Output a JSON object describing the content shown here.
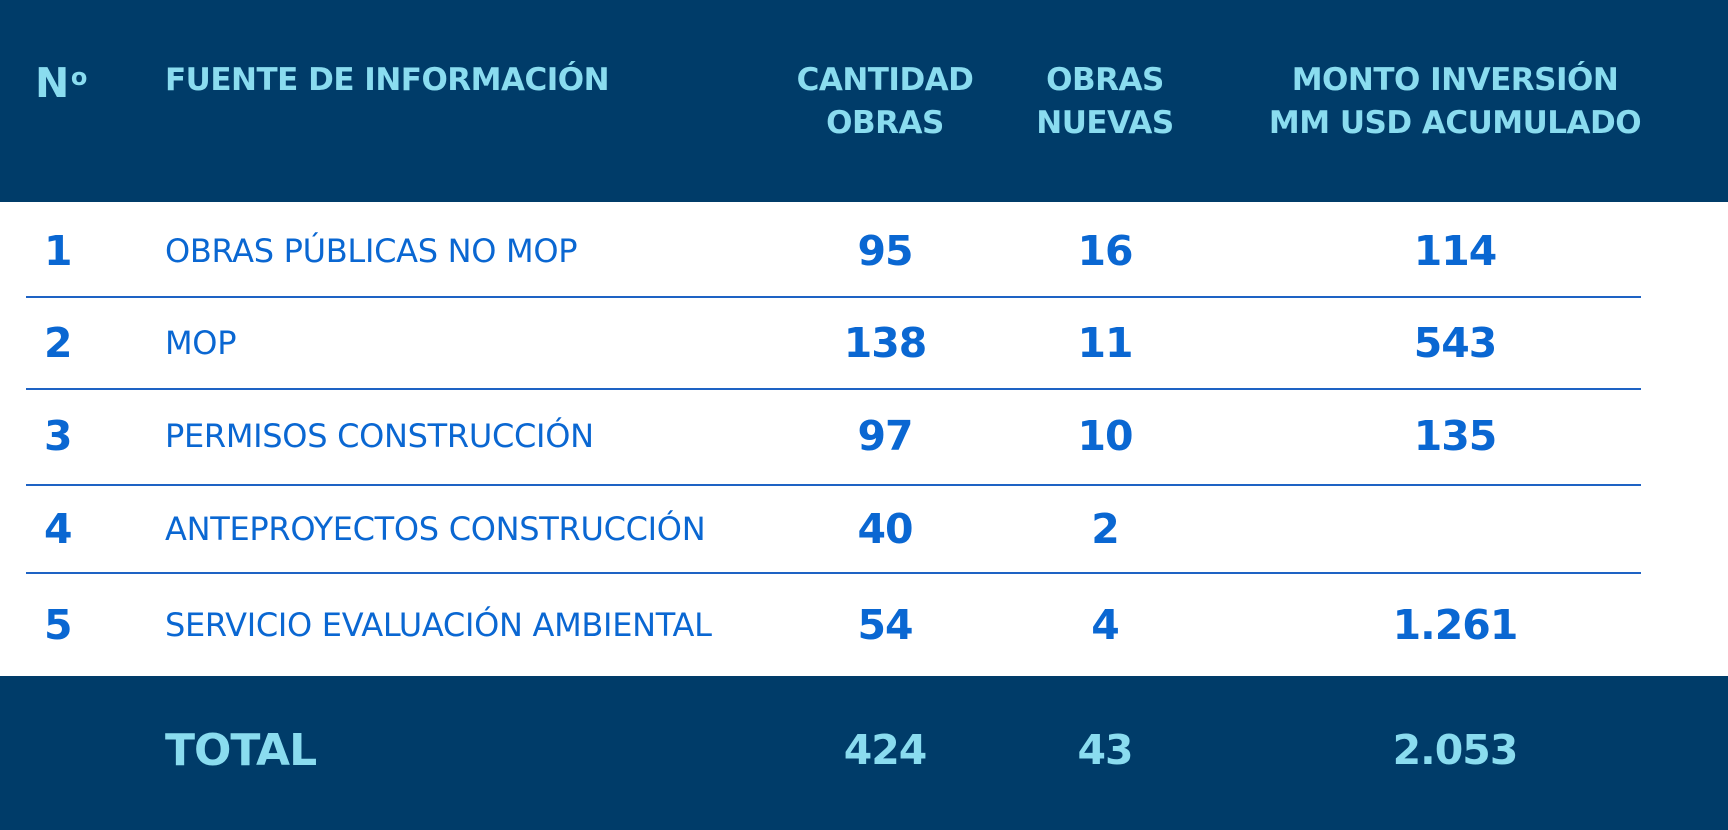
{
  "chart_data": {
    "type": "table",
    "columns": [
      "Nº",
      "FUENTE DE INFORMACIÓN",
      "CANTIDAD OBRAS",
      "OBRAS NUEVAS",
      "MONTO INVERSIÓN MM USD ACUMULADO"
    ],
    "header": {
      "no": "N",
      "no_sup": "o",
      "fuente": "FUENTE DE INFORMACIÓN",
      "cantidad_line1": "CANTIDAD",
      "cantidad_line2": "OBRAS",
      "nuevas_line1": "OBRAS",
      "nuevas_line2": "NUEVAS",
      "monto_line1": "MONTO INVERSIÓN",
      "monto_line2": "MM USD ACUMULADO"
    },
    "rows": [
      {
        "no": "1",
        "fuente": "OBRAS PÚBLICAS NO MOP",
        "cantidad": "95",
        "nuevas": "16",
        "monto": "114"
      },
      {
        "no": "2",
        "fuente": "MOP",
        "cantidad": "138",
        "nuevas": "11",
        "monto": "543"
      },
      {
        "no": "3",
        "fuente": "PERMISOS CONSTRUCCIÓN",
        "cantidad": "97",
        "nuevas": "10",
        "monto": "135"
      },
      {
        "no": "4",
        "fuente": "ANTEPROYECTOS CONSTRUCCIÓN",
        "cantidad": "40",
        "nuevas": "2",
        "monto": ""
      },
      {
        "no": "5",
        "fuente": "SERVICIO EVALUACIÓN AMBIENTAL",
        "cantidad": "54",
        "nuevas": "4",
        "monto": "1.261"
      }
    ],
    "total": {
      "label": "TOTAL",
      "cantidad": "424",
      "nuevas": "43",
      "monto": "2.053"
    }
  },
  "colors": {
    "band": "#003C69",
    "header_text": "#8ADCEF",
    "body_text": "#0A67D2",
    "divider": "#1E63C4"
  }
}
